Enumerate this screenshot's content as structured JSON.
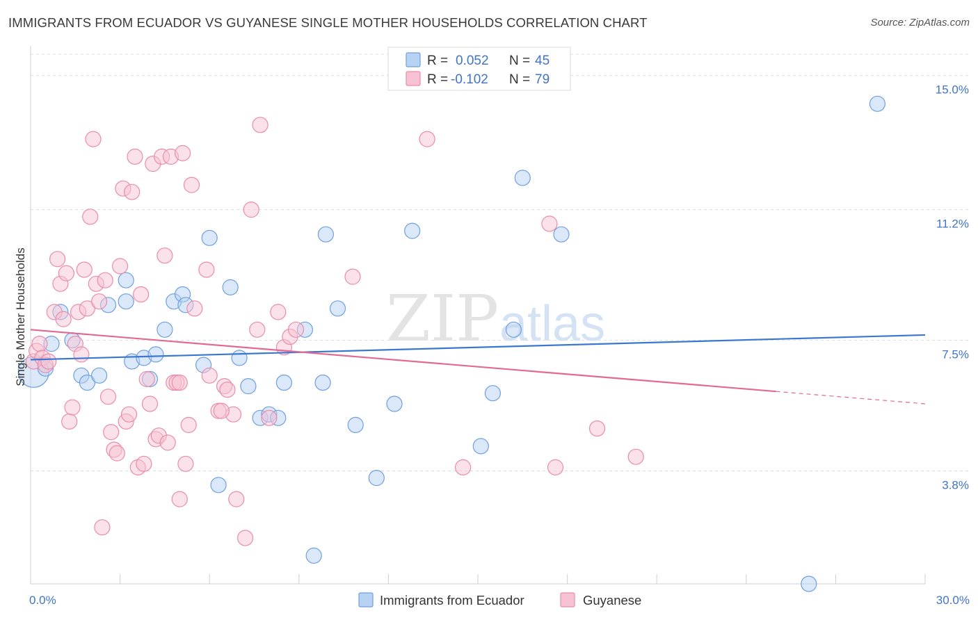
{
  "title": "IMMIGRANTS FROM ECUADOR VS GUYANESE SINGLE MOTHER HOUSEHOLDS CORRELATION CHART",
  "source": "Source: ZipAtlas.com",
  "watermark": {
    "zip": "ZIP",
    "atlas": "atlas"
  },
  "chart_data": {
    "type": "scatter",
    "xlabel": "",
    "ylabel": "Single Mother Households",
    "xlim": [
      0,
      30
    ],
    "ylim": [
      0.6,
      15.8
    ],
    "x_tick_labels": [
      {
        "value": 0,
        "label": "0.0%"
      },
      {
        "value": 30,
        "label": "30.0%"
      }
    ],
    "x_minor_ticks": [
      3,
      6,
      9,
      12,
      15,
      18,
      21,
      24,
      27,
      30
    ],
    "y_ticks": [
      {
        "value": 3.8,
        "label": "3.8%"
      },
      {
        "value": 7.5,
        "label": "7.5%"
      },
      {
        "value": 11.2,
        "label": "11.2%"
      },
      {
        "value": 15.0,
        "label": "15.0%"
      }
    ],
    "grid": "horizontal-dashed",
    "legend_position": "top-center",
    "series": [
      {
        "name": "Immigrants from Ecuador",
        "legend_label": "Immigrants from Ecuador",
        "R_label": "R =",
        "R": "0.052",
        "N_label": "N =",
        "N": "45",
        "fill": "#b8d2f3",
        "stroke": "#6e9fe0",
        "line_color": "#3a78d0",
        "trend": {
          "x0": 0,
          "y0": 6.95,
          "x1": 30,
          "y1": 7.65,
          "dash_from": null
        },
        "points": [
          [
            0.1,
            6.6,
            22
          ],
          [
            0.5,
            6.7,
            11
          ],
          [
            0.7,
            7.4,
            11
          ],
          [
            1.0,
            8.3,
            11
          ],
          [
            1.4,
            7.5,
            11
          ],
          [
            1.7,
            6.5,
            11
          ],
          [
            1.9,
            6.3,
            11
          ],
          [
            2.3,
            6.5,
            11
          ],
          [
            2.6,
            8.5,
            11
          ],
          [
            3.2,
            9.2,
            11
          ],
          [
            3.2,
            8.6,
            11
          ],
          [
            3.4,
            6.9,
            11
          ],
          [
            3.8,
            7.0,
            11
          ],
          [
            4.0,
            6.4,
            11
          ],
          [
            4.2,
            7.1,
            11
          ],
          [
            4.5,
            7.8,
            11
          ],
          [
            4.8,
            8.6,
            11
          ],
          [
            5.1,
            8.8,
            11
          ],
          [
            5.2,
            8.5,
            11
          ],
          [
            5.8,
            6.8,
            11
          ],
          [
            6.0,
            10.4,
            11
          ],
          [
            6.3,
            3.4,
            11
          ],
          [
            6.7,
            9.0,
            11
          ],
          [
            7.0,
            7.0,
            11
          ],
          [
            7.3,
            6.2,
            11
          ],
          [
            7.7,
            5.3,
            11
          ],
          [
            8.0,
            5.4,
            11
          ],
          [
            8.3,
            5.3,
            11
          ],
          [
            8.5,
            6.3,
            11
          ],
          [
            9.2,
            7.8,
            11
          ],
          [
            9.5,
            1.4,
            11
          ],
          [
            9.8,
            6.3,
            11
          ],
          [
            9.9,
            10.5,
            11
          ],
          [
            10.3,
            8.4,
            11
          ],
          [
            10.9,
            5.1,
            11
          ],
          [
            11.6,
            3.6,
            11
          ],
          [
            12.2,
            5.7,
            11
          ],
          [
            12.8,
            10.6,
            11
          ],
          [
            15.1,
            4.5,
            11
          ],
          [
            15.5,
            6.0,
            11
          ],
          [
            16.2,
            7.8,
            11
          ],
          [
            16.5,
            12.1,
            11
          ],
          [
            17.8,
            10.5,
            11
          ],
          [
            26.1,
            0.6,
            11
          ],
          [
            28.4,
            14.2,
            11
          ]
        ]
      },
      {
        "name": "Guyanese",
        "legend_label": "Guyanese",
        "R_label": "R =",
        "R": "-0.102",
        "N_label": "N =",
        "N": "79",
        "fill": "#f7c3d4",
        "stroke": "#e98cab",
        "line_color": "#e06a94",
        "trend": {
          "x0": 0,
          "y0": 7.8,
          "x1": 30,
          "y1": 5.7,
          "dash_from": 25.0
        },
        "points": [
          [
            0.1,
            6.9,
            11
          ],
          [
            0.2,
            7.2,
            11
          ],
          [
            0.3,
            7.4,
            11
          ],
          [
            0.4,
            7.0,
            11
          ],
          [
            0.5,
            6.8,
            11
          ],
          [
            0.6,
            6.9,
            11
          ],
          [
            0.8,
            8.3,
            11
          ],
          [
            0.9,
            9.8,
            11
          ],
          [
            1.0,
            9.1,
            11
          ],
          [
            1.1,
            8.1,
            11
          ],
          [
            1.2,
            9.4,
            11
          ],
          [
            1.3,
            5.2,
            11
          ],
          [
            1.4,
            5.6,
            11
          ],
          [
            1.5,
            7.4,
            11
          ],
          [
            1.6,
            8.3,
            11
          ],
          [
            1.7,
            7.1,
            11
          ],
          [
            1.8,
            9.5,
            11
          ],
          [
            1.9,
            8.4,
            11
          ],
          [
            2.0,
            11.0,
            11
          ],
          [
            2.1,
            13.2,
            11
          ],
          [
            2.2,
            9.1,
            11
          ],
          [
            2.3,
            8.6,
            11
          ],
          [
            2.4,
            2.2,
            11
          ],
          [
            2.5,
            9.2,
            11
          ],
          [
            2.6,
            5.9,
            11
          ],
          [
            2.7,
            4.9,
            11
          ],
          [
            2.8,
            4.4,
            11
          ],
          [
            2.9,
            4.3,
            11
          ],
          [
            3.0,
            9.6,
            11
          ],
          [
            3.1,
            11.8,
            11
          ],
          [
            3.2,
            5.2,
            11
          ],
          [
            3.3,
            5.4,
            11
          ],
          [
            3.4,
            11.7,
            11
          ],
          [
            3.5,
            12.7,
            11
          ],
          [
            3.6,
            3.9,
            11
          ],
          [
            3.7,
            8.8,
            11
          ],
          [
            3.8,
            4.0,
            11
          ],
          [
            3.9,
            6.4,
            11
          ],
          [
            4.0,
            5.7,
            11
          ],
          [
            4.1,
            12.5,
            11
          ],
          [
            4.2,
            4.7,
            11
          ],
          [
            4.3,
            4.8,
            11
          ],
          [
            4.4,
            12.7,
            11
          ],
          [
            4.5,
            9.9,
            11
          ],
          [
            4.6,
            4.6,
            11
          ],
          [
            4.7,
            12.7,
            11
          ],
          [
            4.8,
            6.3,
            11
          ],
          [
            4.9,
            6.3,
            11
          ],
          [
            5.0,
            3.0,
            11
          ],
          [
            5.1,
            12.8,
            11
          ],
          [
            5.2,
            4.0,
            11
          ],
          [
            5.3,
            5.1,
            11
          ],
          [
            5.4,
            11.9,
            11
          ],
          [
            5.5,
            8.4,
            11
          ],
          [
            5.9,
            9.5,
            11
          ],
          [
            6.0,
            6.5,
            11
          ],
          [
            6.3,
            5.5,
            11
          ],
          [
            6.5,
            6.2,
            11
          ],
          [
            6.6,
            6.1,
            11
          ],
          [
            6.8,
            5.4,
            11
          ],
          [
            6.9,
            3.0,
            11
          ],
          [
            7.2,
            1.9,
            11
          ],
          [
            7.4,
            11.2,
            11
          ],
          [
            7.6,
            7.8,
            11
          ],
          [
            7.7,
            13.6,
            11
          ],
          [
            8.0,
            5.3,
            11
          ],
          [
            8.5,
            7.3,
            11
          ],
          [
            8.7,
            7.6,
            11
          ],
          [
            8.9,
            7.8,
            11
          ],
          [
            10.8,
            9.3,
            11
          ],
          [
            13.3,
            13.2,
            11
          ],
          [
            14.5,
            3.9,
            11
          ],
          [
            17.4,
            10.8,
            11
          ],
          [
            17.6,
            3.9,
            11
          ],
          [
            19.0,
            5.0,
            11
          ],
          [
            20.3,
            4.2,
            11
          ],
          [
            5.0,
            6.3,
            11
          ],
          [
            8.3,
            8.3,
            11
          ],
          [
            6.4,
            5.5,
            11
          ]
        ]
      }
    ]
  }
}
